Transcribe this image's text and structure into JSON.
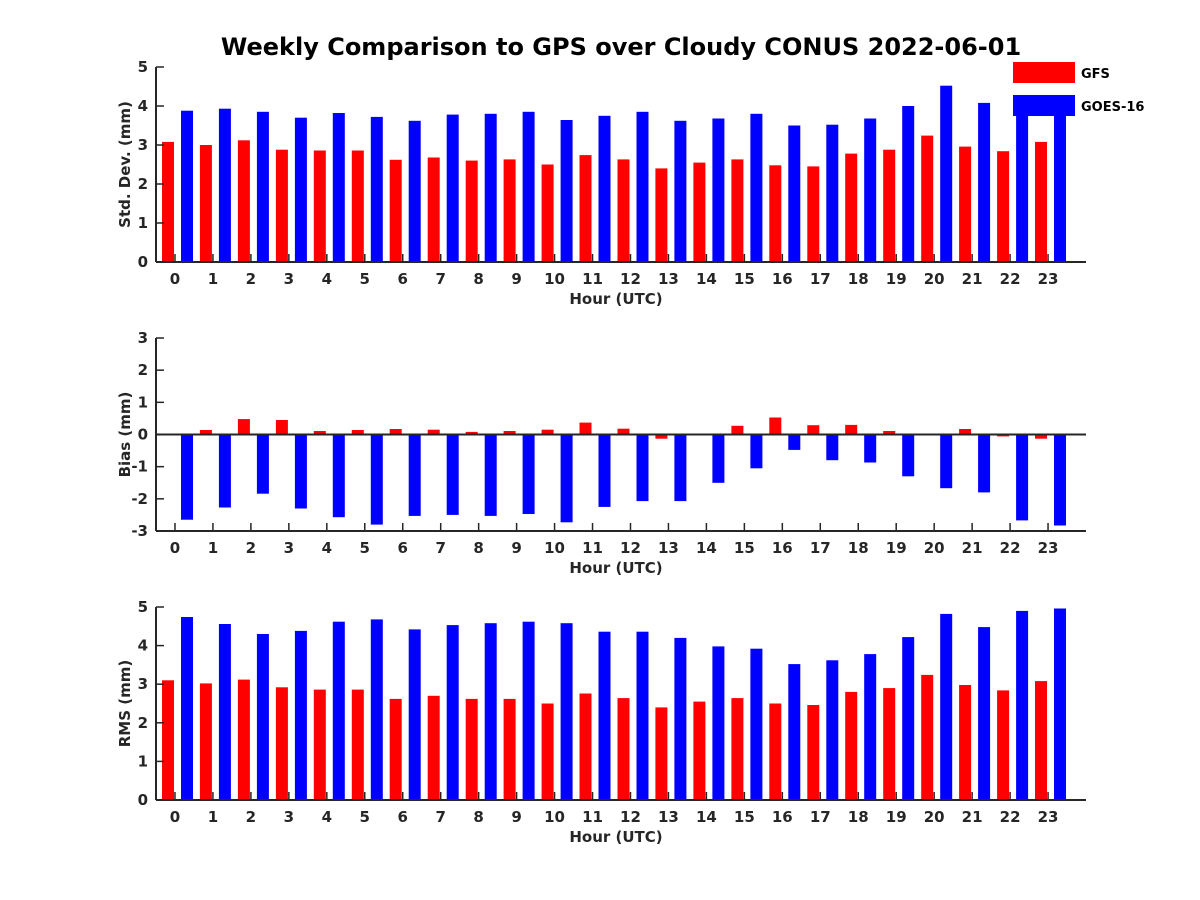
{
  "title": "Weekly Comparison to GPS over Cloudy CONUS 2022-06-01",
  "colors": {
    "GFS": "#ff0000",
    "GOES-16": "#0000ff"
  },
  "legend": {
    "placement": "top-right",
    "entries": [
      "GFS",
      "GOES-16"
    ]
  },
  "chart_data": [
    {
      "type": "bar",
      "title": "Weekly Comparison to GPS over Cloudy CONUS 2022-06-01",
      "xlabel": "Hour (UTC)",
      "ylabel": "Std. Dev. (mm)",
      "ylim": [
        0,
        5
      ],
      "yticks": [
        0,
        1,
        2,
        3,
        4,
        5
      ],
      "categories": [
        "0",
        "1",
        "2",
        "3",
        "4",
        "5",
        "6",
        "7",
        "8",
        "9",
        "10",
        "11",
        "12",
        "13",
        "14",
        "15",
        "16",
        "17",
        "18",
        "19",
        "20",
        "21",
        "22",
        "23"
      ],
      "series": [
        {
          "name": "GFS",
          "values": [
            3.08,
            3.0,
            3.12,
            2.88,
            2.86,
            2.86,
            2.62,
            2.68,
            2.6,
            2.63,
            2.5,
            2.74,
            2.63,
            2.4,
            2.55,
            2.63,
            2.48,
            2.45,
            2.78,
            2.88,
            3.24,
            2.96,
            2.84,
            3.08
          ]
        },
        {
          "name": "GOES-16",
          "values": [
            3.88,
            3.93,
            3.85,
            3.7,
            3.82,
            3.72,
            3.62,
            3.78,
            3.8,
            3.85,
            3.64,
            3.75,
            3.85,
            3.62,
            3.68,
            3.8,
            3.5,
            3.52,
            3.68,
            4.0,
            4.52,
            4.08,
            4.08,
            3.85
          ]
        }
      ]
    },
    {
      "type": "bar",
      "xlabel": "Hour (UTC)",
      "ylabel": "Bias (mm)",
      "ylim": [
        -3,
        3
      ],
      "yticks": [
        -3,
        -2,
        -1,
        0,
        1,
        2,
        3
      ],
      "categories": [
        "0",
        "1",
        "2",
        "3",
        "4",
        "5",
        "6",
        "7",
        "8",
        "9",
        "10",
        "11",
        "12",
        "13",
        "14",
        "15",
        "16",
        "17",
        "18",
        "19",
        "20",
        "21",
        "22",
        "23"
      ],
      "series": [
        {
          "name": "GFS",
          "values": [
            0.0,
            0.14,
            0.48,
            0.45,
            0.11,
            0.14,
            0.17,
            0.15,
            0.08,
            0.11,
            0.15,
            0.37,
            0.18,
            -0.13,
            0.0,
            0.27,
            0.53,
            0.29,
            0.3,
            0.11,
            0.0,
            0.17,
            -0.06,
            -0.13
          ]
        },
        {
          "name": "GOES-16",
          "values": [
            -2.65,
            -2.27,
            -1.84,
            -2.3,
            -2.57,
            -2.8,
            -2.53,
            -2.5,
            -2.53,
            -2.47,
            -2.73,
            -2.25,
            -2.07,
            -2.07,
            -1.5,
            -1.05,
            -0.48,
            -0.8,
            -0.87,
            -1.3,
            -1.67,
            -1.8,
            -2.67,
            -2.83
          ]
        }
      ]
    },
    {
      "type": "bar",
      "xlabel": "Hour (UTC)",
      "ylabel": "RMS (mm)",
      "ylim": [
        0,
        5
      ],
      "yticks": [
        0,
        1,
        2,
        3,
        4,
        5
      ],
      "categories": [
        "0",
        "1",
        "2",
        "3",
        "4",
        "5",
        "6",
        "7",
        "8",
        "9",
        "10",
        "11",
        "12",
        "13",
        "14",
        "15",
        "16",
        "17",
        "18",
        "19",
        "20",
        "21",
        "22",
        "23"
      ],
      "series": [
        {
          "name": "GFS",
          "values": [
            3.1,
            3.02,
            3.12,
            2.92,
            2.86,
            2.86,
            2.62,
            2.7,
            2.62,
            2.62,
            2.5,
            2.76,
            2.64,
            2.4,
            2.55,
            2.64,
            2.5,
            2.46,
            2.8,
            2.9,
            3.24,
            2.98,
            2.84,
            3.08
          ]
        },
        {
          "name": "GOES-16",
          "values": [
            4.74,
            4.56,
            4.3,
            4.38,
            4.62,
            4.68,
            4.42,
            4.53,
            4.58,
            4.62,
            4.58,
            4.36,
            4.36,
            4.2,
            3.98,
            3.92,
            3.52,
            3.62,
            3.78,
            4.22,
            4.82,
            4.48,
            4.9,
            4.96
          ]
        }
      ]
    }
  ]
}
